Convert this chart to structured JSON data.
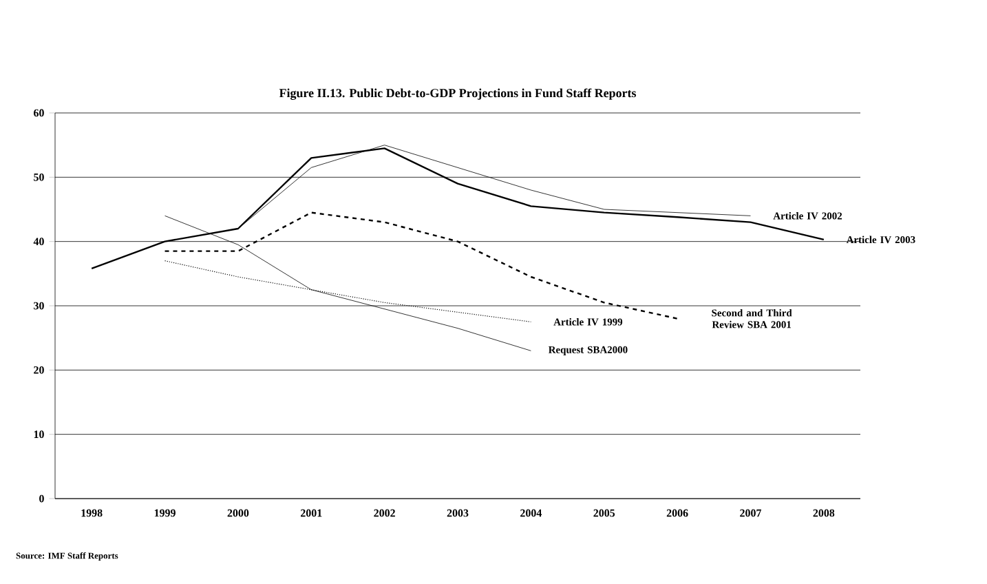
{
  "chart_data": {
    "type": "line",
    "title": "Figure II.13. Public Debt-to-GDP Projections in Fund Staff Reports",
    "categories": [
      "1998",
      "1999",
      "2000",
      "2001",
      "2002",
      "2003",
      "2004",
      "2005",
      "2006",
      "2007",
      "2008"
    ],
    "series": [
      {
        "name": "Article IV 2003",
        "color": "#000000",
        "line_style": "solid",
        "values": [
          35.8,
          40,
          42,
          53,
          54.5,
          49,
          45.5,
          44.5,
          43.8,
          43,
          40.3
        ]
      },
      {
        "name": "Article IV 2002",
        "color": "#000000",
        "line_style": "solid",
        "values": [
          null,
          null,
          42,
          51.5,
          55,
          51.5,
          48,
          45,
          44.5,
          44,
          null
        ]
      },
      {
        "name": "Second and Third Review SBA 2001",
        "color": "#000000",
        "line_style": "dashed",
        "values": [
          null,
          38.5,
          38.5,
          44.5,
          43,
          40,
          34.5,
          30.5,
          28,
          null,
          null
        ]
      },
      {
        "name": "Article IV 1999",
        "color": "#000000",
        "line_style": "dotted",
        "values": [
          null,
          37,
          34.5,
          32.5,
          30.5,
          29,
          27.5,
          null,
          null,
          null,
          null
        ]
      },
      {
        "name": "Request SBA2000",
        "color": "#000000",
        "line_style": "solid",
        "values": [
          null,
          44,
          39.5,
          32.5,
          29.5,
          26.5,
          23,
          null,
          null,
          null,
          null
        ]
      }
    ],
    "ylim": [
      0,
      60
    ],
    "yticks": [
      0,
      10,
      20,
      30,
      40,
      50,
      60
    ],
    "grid": "y",
    "annotations": [
      "Source: IMF Staff Reports"
    ]
  }
}
